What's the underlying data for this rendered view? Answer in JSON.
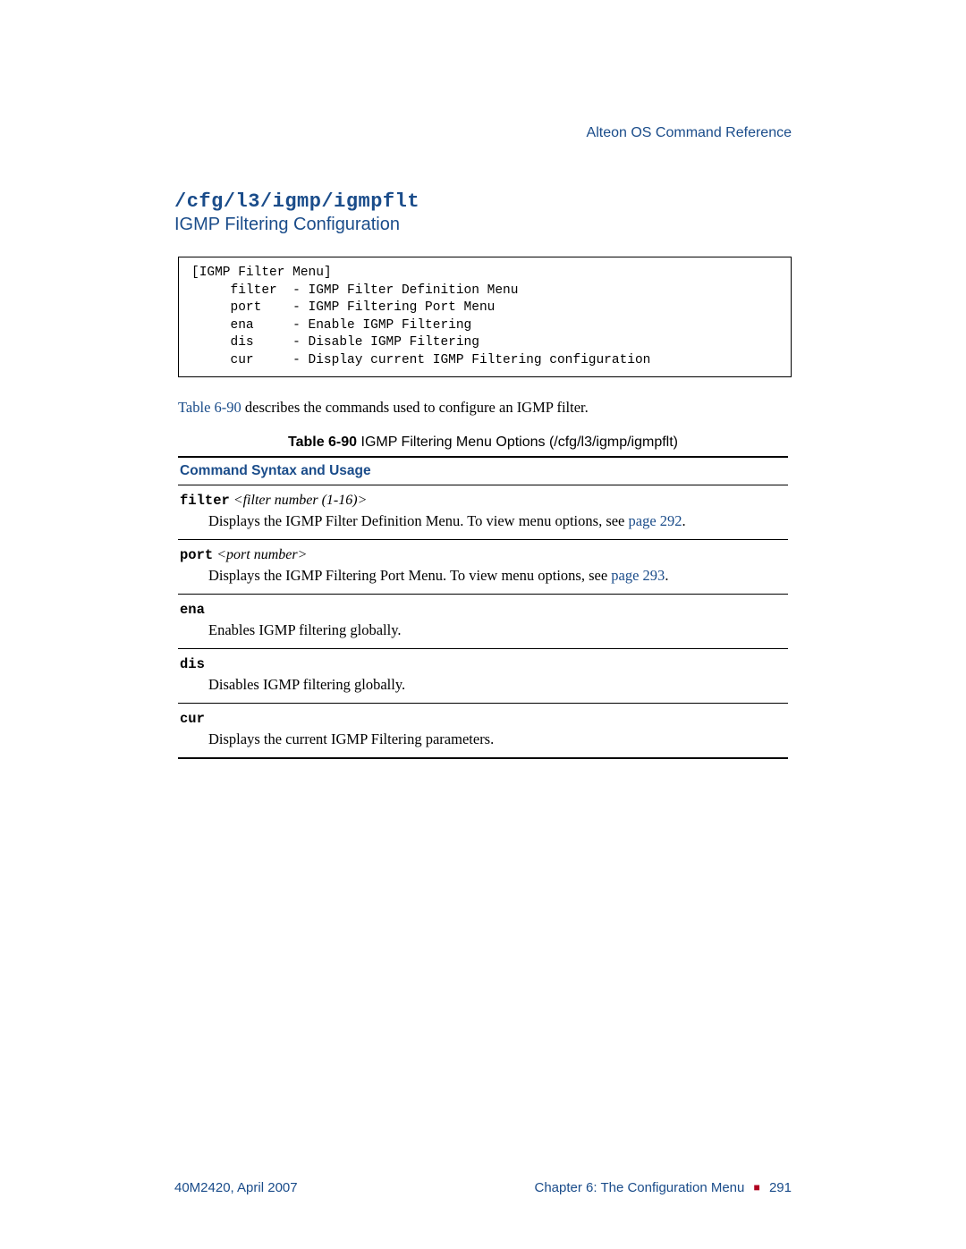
{
  "colors": {
    "accent": "#1a4c8a",
    "text": "#000000",
    "rule": "#000000",
    "bullet": "#b00020",
    "background": "#ffffff"
  },
  "header": {
    "doc_title": "Alteon OS  Command Reference"
  },
  "section": {
    "command_path": "/cfg/l3/igmp/igmpflt",
    "subtitle": "IGMP Filtering Configuration"
  },
  "menu_box": "[IGMP Filter Menu]\n     filter  - IGMP Filter Definition Menu\n     port    - IGMP Filtering Port Menu\n     ena     - Enable IGMP Filtering\n     dis     - Disable IGMP Filtering\n     cur     - Display current IGMP Filtering configuration",
  "intro": {
    "table_ref": "Table 6-90",
    "rest": " describes the commands used to configure an IGMP filter."
  },
  "table": {
    "caption_label": "Table 6-90",
    "caption_title": "  IGMP Filtering Menu Options (/cfg/l3/igmp/igmpflt)",
    "column_header": "Command Syntax and Usage",
    "rows": [
      {
        "cmd": "filter",
        "arg": " <filter number (1-16)>",
        "desc_pre": "Displays the IGMP Filter Definition Menu. To view menu options, see ",
        "desc_link": "page 292",
        "desc_post": "."
      },
      {
        "cmd": "port",
        "arg": " <port number>",
        "desc_pre": "Displays the IGMP Filtering Port Menu. To view menu options, see ",
        "desc_link": "page 293",
        "desc_post": "."
      },
      {
        "cmd": "ena",
        "arg": "",
        "desc_pre": "Enables IGMP filtering globally.",
        "desc_link": "",
        "desc_post": ""
      },
      {
        "cmd": "dis",
        "arg": "",
        "desc_pre": "Disables IGMP filtering globally.",
        "desc_link": "",
        "desc_post": ""
      },
      {
        "cmd": "cur",
        "arg": "",
        "desc_pre": "Displays the current IGMP Filtering parameters.",
        "desc_link": "",
        "desc_post": ""
      }
    ]
  },
  "footer": {
    "left": "40M2420, April 2007",
    "right_chapter": "Chapter 6:  The Configuration Menu",
    "right_page": "291"
  }
}
